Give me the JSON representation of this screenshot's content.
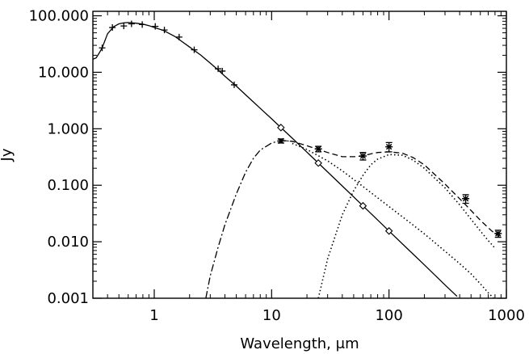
{
  "chart_data": {
    "type": "line",
    "title": "",
    "xlabel": "Wavelength, μm",
    "ylabel": "Jy",
    "x_scale": "log",
    "y_scale": "log",
    "xlim": [
      0.3,
      1000
    ],
    "ylim": [
      0.001,
      120
    ],
    "x_ticks": [
      {
        "value": 1,
        "label": "1"
      },
      {
        "value": 10,
        "label": "10"
      },
      {
        "value": 100,
        "label": "100"
      },
      {
        "value": 1000,
        "label": "1000"
      }
    ],
    "y_ticks": [
      {
        "value": 0.001,
        "label": "0.001"
      },
      {
        "value": 0.01,
        "label": "0.010"
      },
      {
        "value": 0.1,
        "label": "0.100"
      },
      {
        "value": 1,
        "label": "1.000"
      },
      {
        "value": 10,
        "label": "10.000"
      },
      {
        "value": 100,
        "label": "100.000"
      }
    ],
    "grid": false,
    "legend": "none",
    "series": [
      {
        "style": "solid",
        "x": [
          0.3,
          0.32,
          0.34,
          0.36,
          0.4,
          0.45,
          0.5,
          0.55,
          0.6,
          0.65,
          0.7,
          0.8,
          0.9,
          1.0,
          1.2,
          1.5,
          2.0,
          2.5,
          3.0,
          3.5,
          4.0,
          5.0,
          6.0,
          8.0,
          10.0,
          12.0,
          15.0,
          20.0,
          25.0,
          30.0,
          40.0,
          60.0,
          80.0,
          100.0,
          150.0,
          200.0,
          300.0,
          380.0
        ],
        "y": [
          17,
          18,
          22,
          27,
          48,
          64,
          72,
          75,
          76,
          75,
          74,
          71,
          67,
          62,
          55,
          43,
          28,
          20,
          14.5,
          11,
          8.5,
          5.7,
          4.0,
          2.3,
          1.5,
          1.05,
          0.68,
          0.385,
          0.247,
          0.172,
          0.097,
          0.0432,
          0.0243,
          0.0155,
          0.0069,
          0.0039,
          0.00172,
          0.00108
        ]
      },
      {
        "style": "dash-dot",
        "x": [
          2.75,
          3.0,
          3.5,
          4.0,
          5.0,
          6.0,
          7.0,
          8.0,
          10.0,
          12.0,
          15.0
        ],
        "y": [
          0.001,
          0.0025,
          0.008,
          0.02,
          0.07,
          0.17,
          0.3,
          0.42,
          0.56,
          0.62,
          0.6
        ]
      },
      {
        "style": "dotted",
        "x": [
          15.0,
          20.0,
          30.0,
          40.0,
          60.0,
          80.0,
          100.0,
          150.0,
          200.0,
          300.0,
          400.0,
          500.0,
          600.0,
          700.0,
          800.0
        ],
        "y": [
          0.55,
          0.43,
          0.27,
          0.18,
          0.095,
          0.06,
          0.042,
          0.022,
          0.0138,
          0.0068,
          0.0041,
          0.0027,
          0.0018,
          0.00125,
          0.00095
        ]
      },
      {
        "style": "dotted",
        "x": [
          25.0,
          30.0,
          40.0,
          50.0,
          60.0,
          70.0,
          80.0,
          100.0,
          130.0,
          160.0,
          200.0,
          300.0,
          400.0,
          500.0,
          600.0,
          700.0,
          800.0
        ],
        "y": [
          0.001,
          0.005,
          0.03,
          0.08,
          0.15,
          0.23,
          0.29,
          0.35,
          0.34,
          0.28,
          0.2,
          0.09,
          0.045,
          0.025,
          0.0155,
          0.0105,
          0.0077
        ]
      },
      {
        "style": "dashed",
        "x": [
          12.0,
          15.0,
          20.0,
          25.0,
          30.0,
          40.0,
          50.0,
          60.0,
          70.0,
          80.0,
          100.0,
          130.0,
          160.0,
          200.0,
          300.0,
          450.0,
          600.0,
          750.0,
          870.0
        ],
        "y": [
          0.62,
          0.6,
          0.5,
          0.43,
          0.38,
          0.32,
          0.32,
          0.33,
          0.36,
          0.38,
          0.39,
          0.37,
          0.31,
          0.23,
          0.105,
          0.045,
          0.024,
          0.0155,
          0.0125
        ]
      }
    ],
    "markers": [
      {
        "symbol": "plus",
        "x": [
          0.36,
          0.44,
          0.55,
          0.64,
          0.79,
          1.02,
          1.22,
          1.63,
          2.19,
          3.5,
          3.8,
          4.8
        ],
        "y": [
          27,
          62,
          66,
          72,
          70,
          65,
          56,
          42,
          25,
          11.5,
          10.5,
          6.0
        ]
      },
      {
        "symbol": "diamond",
        "x": [
          12.0,
          25.0,
          60.0,
          100.0
        ],
        "y": [
          1.05,
          0.247,
          0.0432,
          0.0155
        ]
      },
      {
        "symbol": "asterisk-errorbar",
        "x": [
          12.0,
          25.0,
          60.0,
          100.0,
          450.0,
          850.0
        ],
        "y": [
          0.61,
          0.44,
          0.33,
          0.48,
          0.058,
          0.014
        ],
        "y_low": [
          0.56,
          0.39,
          0.28,
          0.39,
          0.048,
          0.012
        ],
        "y_high": [
          0.66,
          0.49,
          0.38,
          0.57,
          0.068,
          0.016
        ]
      }
    ]
  }
}
